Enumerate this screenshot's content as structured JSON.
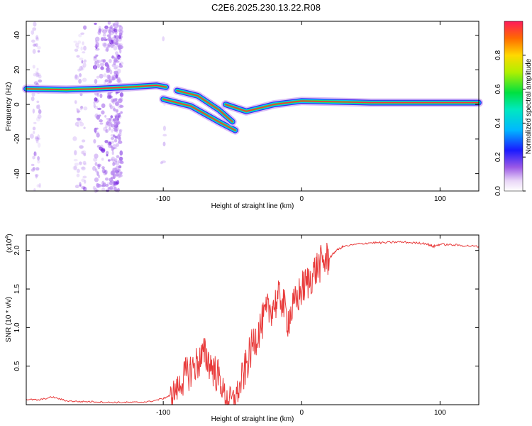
{
  "title": "C2E6.2025.230.13.22.R08",
  "chart_data": [
    {
      "type": "heatmap",
      "xlabel": "Height of straight line (km)",
      "ylabel": "Frequency (Hz)",
      "xlim": [
        -199,
        128
      ],
      "ylim": [
        -50,
        48
      ],
      "xticks": [
        -100,
        0,
        100
      ],
      "yticks": [
        -40,
        -20,
        0,
        20,
        40
      ],
      "colorbar": {
        "label": "Normalized spectral amplitude",
        "range": [
          0,
          1
        ],
        "ticks": [
          0.0,
          0.2,
          0.4,
          0.6,
          0.8
        ],
        "tick_labels": [
          "0.0",
          "0.2",
          "0.4",
          "0.6",
          "0.8"
        ]
      },
      "ridge": [
        {
          "x": -199,
          "y": 9
        },
        {
          "x": -170,
          "y": 8.5
        },
        {
          "x": -150,
          "y": 9
        },
        {
          "x": -125,
          "y": 10
        },
        {
          "x": -105,
          "y": 11
        },
        {
          "x": -98,
          "y": 10
        }
      ],
      "ridge_branches": [
        [
          {
            "x": -100,
            "y": 3
          },
          {
            "x": -80,
            "y": -1
          },
          {
            "x": -60,
            "y": -10
          },
          {
            "x": -48,
            "y": -15
          }
        ],
        [
          {
            "x": -90,
            "y": 8
          },
          {
            "x": -75,
            "y": 5
          },
          {
            "x": -60,
            "y": -3
          },
          {
            "x": -50,
            "y": -10
          }
        ],
        [
          {
            "x": -55,
            "y": 0
          },
          {
            "x": -40,
            "y": -4
          },
          {
            "x": -20,
            "y": 0
          },
          {
            "x": 0,
            "y": 2
          },
          {
            "x": 50,
            "y": 1
          },
          {
            "x": 128,
            "y": 1
          }
        ]
      ]
    },
    {
      "type": "line",
      "xlabel": "Height of straight line (km)",
      "ylabel": "SNR (10 * v/v)",
      "y_multiplier": "(x10",
      "y_multiplier_exp": "4",
      "xlim": [
        -199,
        128
      ],
      "ylim": [
        0,
        2.2
      ],
      "xticks": [
        -100,
        0,
        100
      ],
      "yticks": [
        0.5,
        1.0,
        1.5,
        2.0
      ],
      "ytick_labels": [
        "0.5",
        "1.0",
        "1.5",
        "2.0"
      ],
      "series": [
        {
          "color": "#e83a3a",
          "x": [
            -199,
            -190,
            -180,
            -170,
            -160,
            -150,
            -140,
            -130,
            -120,
            -110,
            -100,
            -95,
            -90,
            -85,
            -80,
            -75,
            -70,
            -65,
            -60,
            -55,
            -50,
            -45,
            -40,
            -35,
            -30,
            -25,
            -20,
            -15,
            -10,
            -5,
            0,
            5,
            10,
            15,
            20,
            25,
            30,
            40,
            50,
            60,
            70,
            80,
            90,
            95,
            100,
            110,
            120,
            128
          ],
          "y": [
            0.07,
            0.06,
            0.1,
            0.05,
            0.04,
            0.04,
            0.03,
            0.03,
            0.03,
            0.04,
            0.08,
            0.12,
            0.2,
            0.35,
            0.45,
            0.55,
            0.65,
            0.5,
            0.35,
            0.1,
            0.05,
            0.2,
            0.5,
            0.8,
            1.0,
            1.2,
            1.3,
            1.4,
            1.1,
            1.3,
            1.5,
            1.6,
            1.75,
            1.85,
            1.9,
            2.0,
            2.05,
            2.08,
            2.1,
            2.1,
            2.11,
            2.1,
            2.09,
            2.05,
            2.08,
            2.07,
            2.06,
            2.05
          ]
        }
      ]
    }
  ]
}
